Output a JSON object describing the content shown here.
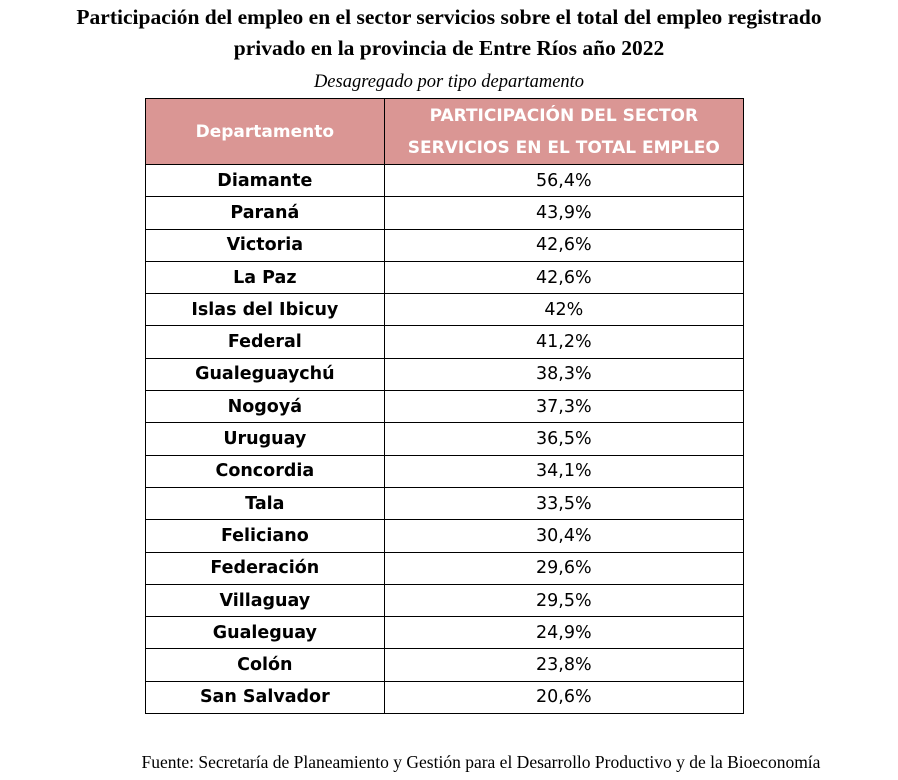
{
  "title_line1": "Participación del empleo en el sector servicios sobre el total del empleo registrado",
  "title_line2": "privado en la provincia de Entre Ríos año 2022",
  "subtitle": "Desagregado por tipo departamento",
  "table": {
    "header": {
      "col1": "Departamento",
      "col2_line1": "PARTICIPACIÓN DEL SECTOR",
      "col2_line2": "SERVICIOS EN EL TOTAL EMPLEO"
    },
    "header_color": "#da9694",
    "rows": [
      {
        "departamento": "Diamante",
        "participacion": "56,4%"
      },
      {
        "departamento": "Paraná",
        "participacion": "43,9%"
      },
      {
        "departamento": "Victoria",
        "participacion": "42,6%"
      },
      {
        "departamento": "La Paz",
        "participacion": "42,6%"
      },
      {
        "departamento": "Islas del Ibicuy",
        "participacion": "42%"
      },
      {
        "departamento": "Federal",
        "participacion": "41,2%"
      },
      {
        "departamento": "Gualeguaychú",
        "participacion": "38,3%"
      },
      {
        "departamento": "Nogoyá",
        "participacion": "37,3%"
      },
      {
        "departamento": "Uruguay",
        "participacion": "36,5%"
      },
      {
        "departamento": "Concordia",
        "participacion": "34,1%"
      },
      {
        "departamento": "Tala",
        "participacion": "33,5%"
      },
      {
        "departamento": "Feliciano",
        "participacion": "30,4%"
      },
      {
        "departamento": "Federación",
        "participacion": "29,6%"
      },
      {
        "departamento": "Villaguay",
        "participacion": "29,5%"
      },
      {
        "departamento": "Gualeguay",
        "participacion": "24,9%"
      },
      {
        "departamento": "Colón",
        "participacion": "23,8%"
      },
      {
        "departamento": "San Salvador",
        "participacion": "20,6%"
      }
    ]
  },
  "source": "Fuente: Secretaría de Planeamiento y Gestión para el Desarrollo Productivo y de la Bioeconomía"
}
